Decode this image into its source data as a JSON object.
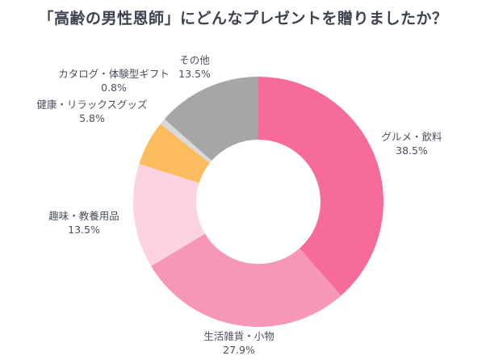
{
  "chart_data": {
    "type": "pie",
    "donut": true,
    "title": "「高齢の男性恩師」にどんなプレゼントを贈りましたか？",
    "unit": "%",
    "slices": [
      {
        "label": "グルメ・飲料",
        "value": 38.5,
        "value_label": "38.5%",
        "color": "#f76b99"
      },
      {
        "label": "生活雑貨・小物",
        "value": 27.9,
        "value_label": "27.9%",
        "color": "#f597b5"
      },
      {
        "label": "趣味・教養用品",
        "value": 13.5,
        "value_label": "13.5%",
        "color": "#fdd3e1"
      },
      {
        "label": "健康・リラックスグッズ",
        "value": 5.8,
        "value_label": "5.8%",
        "color": "#fcbb5c"
      },
      {
        "label": "カタログ・体験型ギフト",
        "value": 0.8,
        "value_label": "0.8%",
        "color": "#d9d9d9"
      },
      {
        "label": "その他",
        "value": 13.5,
        "value_label": "13.5%",
        "color": "#a6a6a6"
      }
    ],
    "start": "12 o'clock",
    "direction": "clockwise",
    "legend": "none"
  }
}
